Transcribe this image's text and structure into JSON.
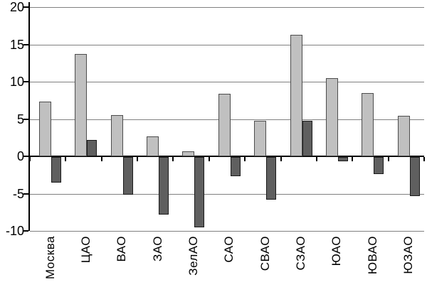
{
  "chart_data": {
    "type": "bar",
    "title": "",
    "xlabel": "",
    "ylabel": "",
    "categories": [
      "Москва",
      "ЦАО",
      "ВАО",
      "ЗАО",
      "ЗелАО",
      "САО",
      "СВАО",
      "СЗАО",
      "ЮАО",
      "ЮВАО",
      "ЮЗАО"
    ],
    "series": [
      {
        "name": "light-gray-series",
        "color": "#c0c0c0",
        "border_color": "#4d4d4d",
        "values": [
          7.3,
          13.7,
          5.5,
          2.7,
          0.7,
          8.4,
          4.8,
          16.3,
          10.5,
          8.5,
          5.4
        ]
      },
      {
        "name": "dark-gray-series",
        "color": "#5f5f5f",
        "border_color": "#1a1a1a",
        "values": [
          -3.4,
          2.2,
          -5.0,
          -7.7,
          -9.4,
          -2.6,
          -5.7,
          4.8,
          -0.6,
          -2.3,
          -5.2
        ]
      }
    ],
    "yticks": [
      20,
      15,
      10,
      5,
      0,
      -5,
      -10
    ],
    "ylim": [
      -10,
      20
    ],
    "grid": true,
    "legend_position": "none",
    "axis_color": "#000000",
    "gridline_color": "#808080",
    "zero_line_color": "#000000",
    "background_color": "#ffffff"
  }
}
